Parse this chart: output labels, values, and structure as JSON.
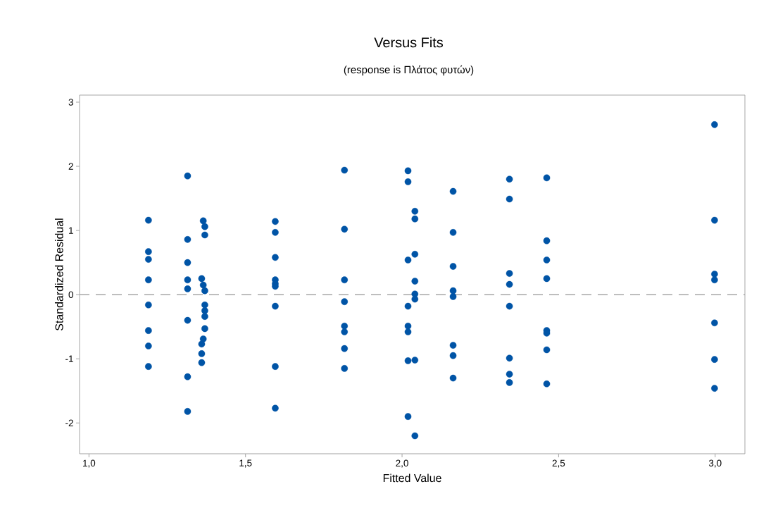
{
  "chart_data": {
    "type": "scatter",
    "title": "Versus Fits",
    "subtitle": "(response is Πλάτος φυτών)",
    "xlabel": "Fitted Value",
    "ylabel": "Standardized Residual",
    "xlim": [
      0.97,
      3.095
    ],
    "ylim": [
      -2.48,
      3.11
    ],
    "xticks": [
      {
        "value": 1.0,
        "label": "1,0"
      },
      {
        "value": 1.5,
        "label": "1,5"
      },
      {
        "value": 2.0,
        "label": "2,0"
      },
      {
        "value": 2.5,
        "label": "2,5"
      },
      {
        "value": 3.0,
        "label": "3,0"
      }
    ],
    "yticks": [
      -2,
      -1,
      0,
      1,
      2,
      3
    ],
    "grid": false,
    "marker": "circle",
    "ref_lines": [
      {
        "axis": "y",
        "value": 0,
        "color": "#a6a6a6",
        "line_style": "dashed"
      }
    ],
    "series": [
      {
        "color": "#0054a6",
        "x": [
          1.19,
          1.19,
          1.19,
          1.19,
          1.19,
          1.19,
          1.19,
          1.19,
          1.315,
          1.315,
          1.315,
          1.315,
          1.315,
          1.315,
          1.315,
          1.315,
          1.365,
          1.37,
          1.37,
          1.36,
          1.365,
          1.37,
          1.37,
          1.37,
          1.37,
          1.37,
          1.365,
          1.36,
          1.36,
          1.36,
          1.595,
          1.595,
          1.595,
          1.595,
          1.595,
          1.595,
          1.595,
          1.595,
          1.595,
          1.816,
          1.816,
          1.816,
          1.816,
          1.816,
          1.816,
          1.816,
          1.816,
          2.019,
          2.019,
          2.019,
          2.019,
          2.019,
          2.019,
          2.019,
          2.019,
          2.041,
          2.041,
          2.041,
          2.041,
          2.041,
          2.041,
          2.041,
          2.041,
          2.163,
          2.163,
          2.163,
          2.163,
          2.163,
          2.163,
          2.163,
          2.163,
          2.343,
          2.343,
          2.343,
          2.343,
          2.343,
          2.343,
          2.343,
          2.343,
          2.462,
          2.462,
          2.462,
          2.462,
          2.462,
          2.462,
          2.462,
          2.462,
          2.998,
          2.998,
          2.998,
          2.998,
          2.998,
          2.998,
          2.998
        ],
        "values": [
          1.16,
          0.67,
          0.55,
          0.23,
          -0.16,
          -0.56,
          -0.8,
          -1.12,
          1.85,
          0.86,
          0.5,
          0.23,
          0.09,
          -0.4,
          -1.28,
          -1.82,
          1.15,
          1.06,
          0.93,
          0.25,
          0.15,
          0.06,
          -0.16,
          -0.25,
          -0.34,
          -0.53,
          -0.69,
          -0.77,
          -0.92,
          -1.06,
          1.14,
          0.97,
          0.58,
          0.23,
          0.17,
          0.13,
          -0.18,
          -1.12,
          -1.77,
          1.94,
          1.02,
          0.23,
          -0.11,
          -0.49,
          -0.58,
          -0.84,
          -1.15,
          1.93,
          1.76,
          0.54,
          -0.18,
          -0.49,
          -0.58,
          -1.03,
          -1.9,
          1.3,
          1.18,
          0.63,
          0.21,
          0.01,
          -0.07,
          -1.02,
          -2.2,
          1.61,
          0.97,
          0.44,
          0.06,
          -0.03,
          -0.79,
          -0.95,
          -1.3,
          1.8,
          1.49,
          0.33,
          0.16,
          -0.18,
          -0.99,
          -1.24,
          -1.37,
          1.82,
          0.84,
          0.54,
          0.25,
          -0.56,
          -0.6,
          -0.86,
          -1.39,
          2.65,
          1.16,
          0.32,
          0.23,
          -0.44,
          -1.01,
          -1.46
        ]
      }
    ]
  }
}
